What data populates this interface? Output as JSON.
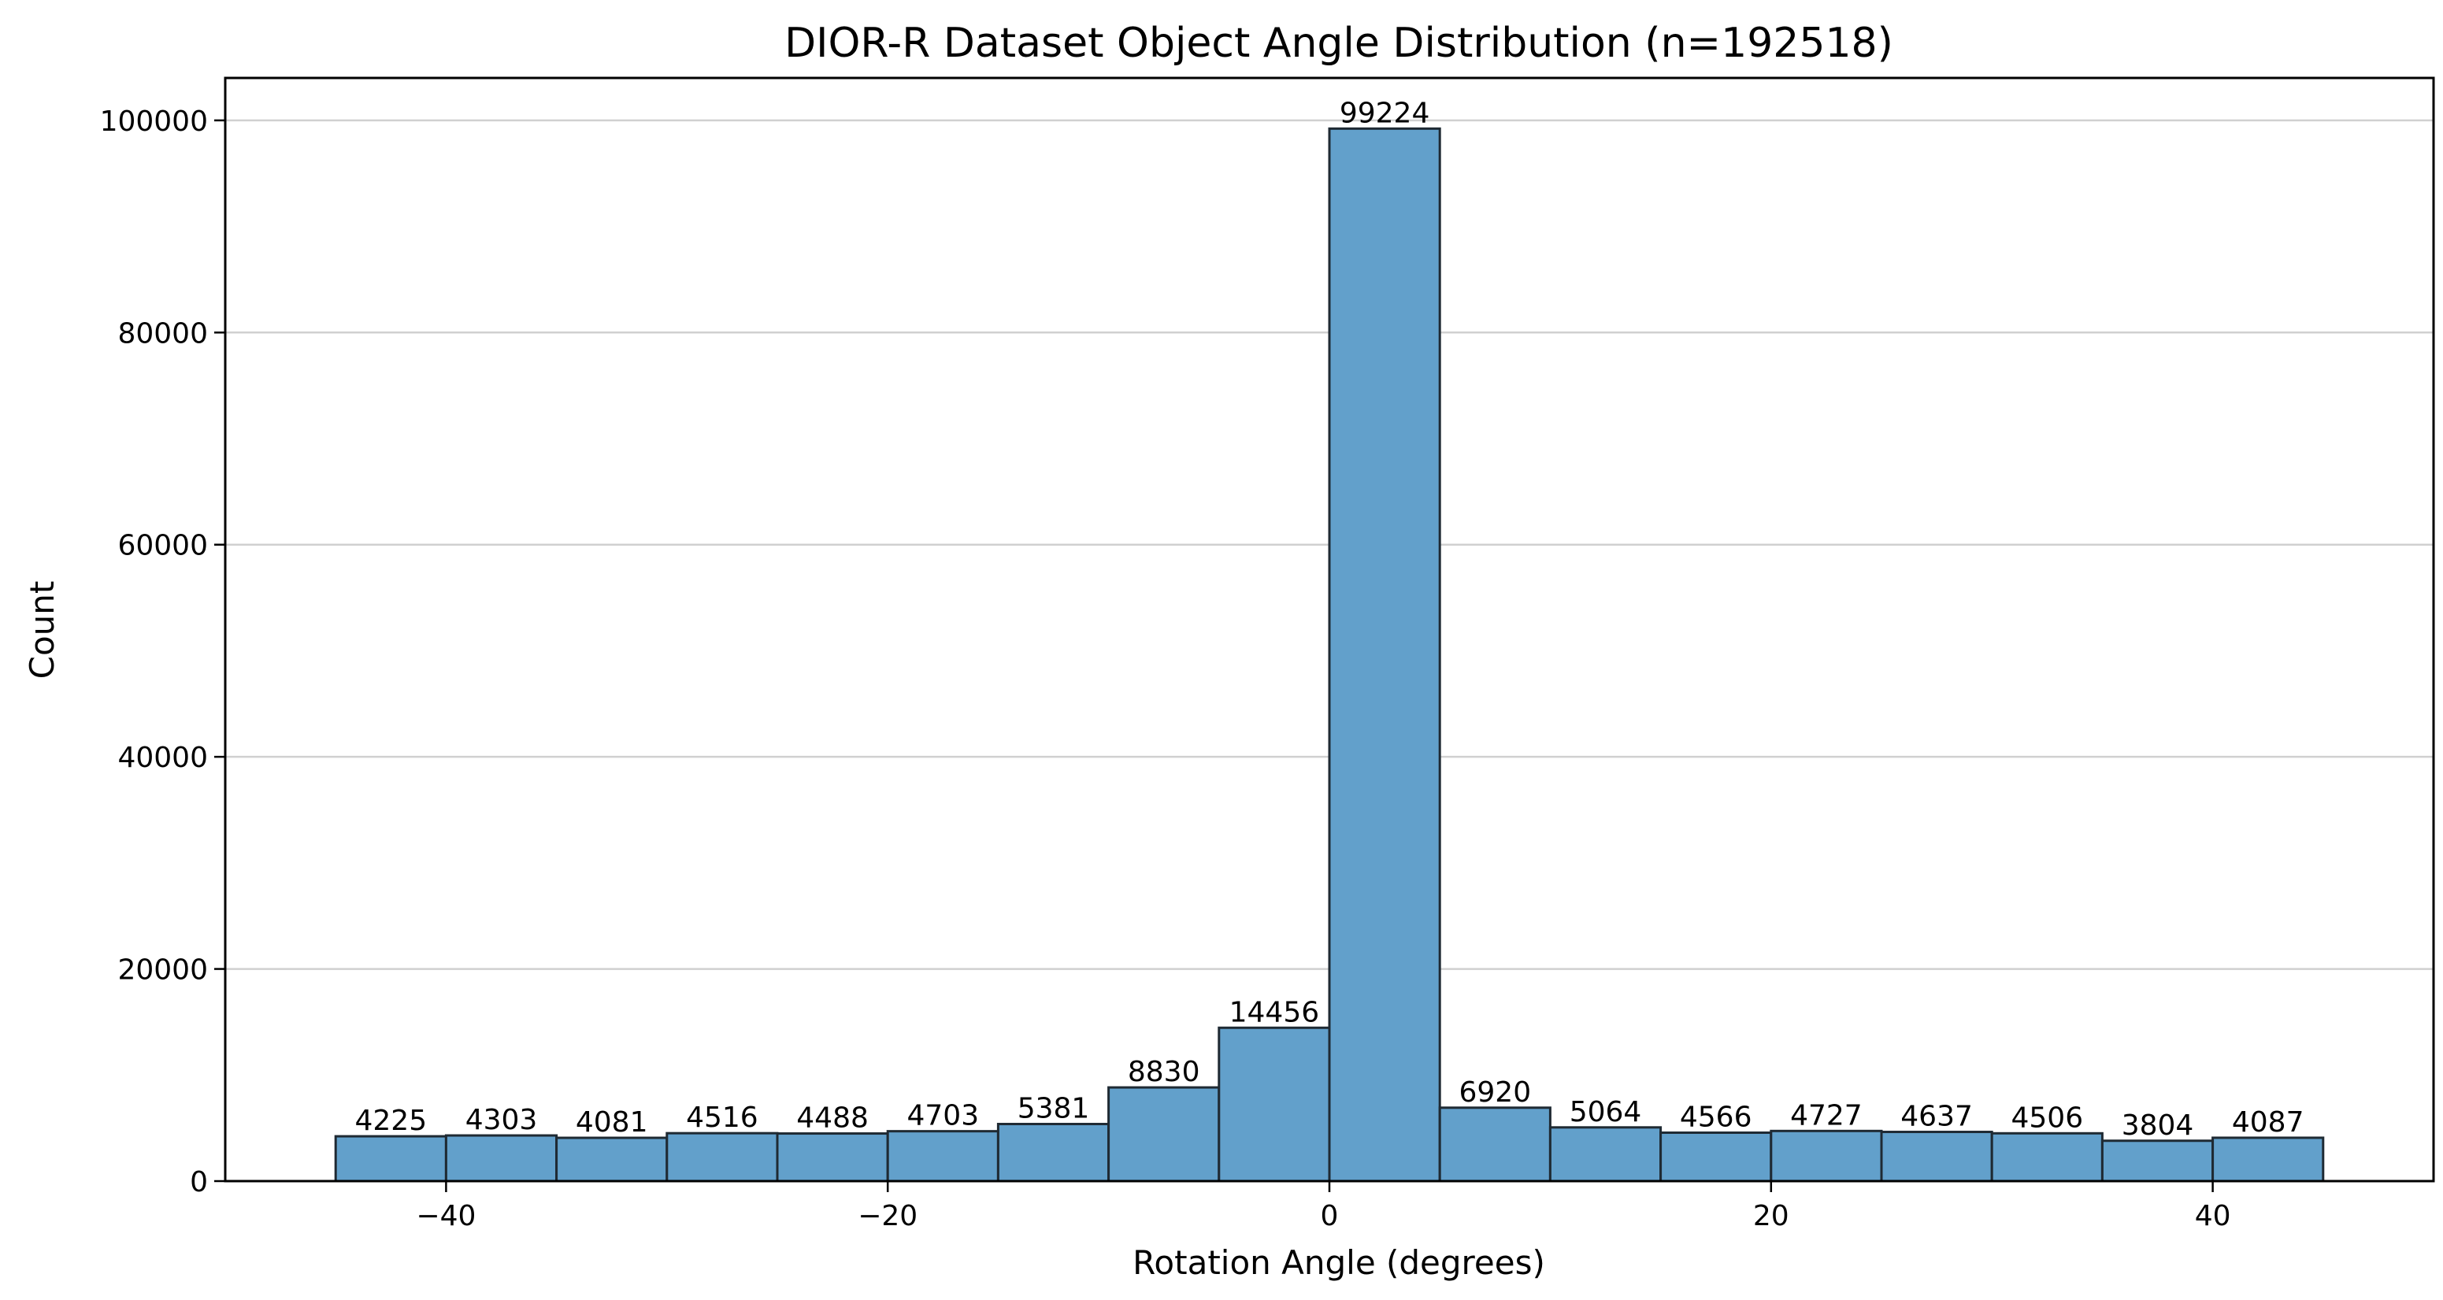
{
  "chart_data": {
    "type": "bar",
    "title": "DIOR-R Dataset Object Angle Distribution (n=192518)",
    "xlabel": "Rotation Angle (degrees)",
    "ylabel": "Count",
    "bin_edges": [
      -45,
      -40,
      -35,
      -30,
      -25,
      -20,
      -15,
      -10,
      -5,
      0,
      5,
      10,
      15,
      20,
      25,
      30,
      35,
      40,
      45
    ],
    "values": [
      4225,
      4303,
      4081,
      4516,
      4488,
      4703,
      5381,
      8830,
      14456,
      99224,
      6920,
      5064,
      4566,
      4727,
      4637,
      4506,
      3804,
      4087
    ],
    "xlim": [
      -50,
      50
    ],
    "ylim": [
      0,
      104000
    ],
    "xticks": [
      -40,
      -20,
      0,
      20,
      40
    ],
    "xtick_labels": [
      "−40",
      "−20",
      "0",
      "20",
      "40"
    ],
    "yticks": [
      0,
      20000,
      40000,
      60000,
      80000,
      100000
    ],
    "ytick_labels": [
      "0",
      "20000",
      "40000",
      "60000",
      "80000",
      "100000"
    ],
    "grid": "y",
    "bar_color": "#62a0cb",
    "edge_color": "#1f2a33"
  }
}
